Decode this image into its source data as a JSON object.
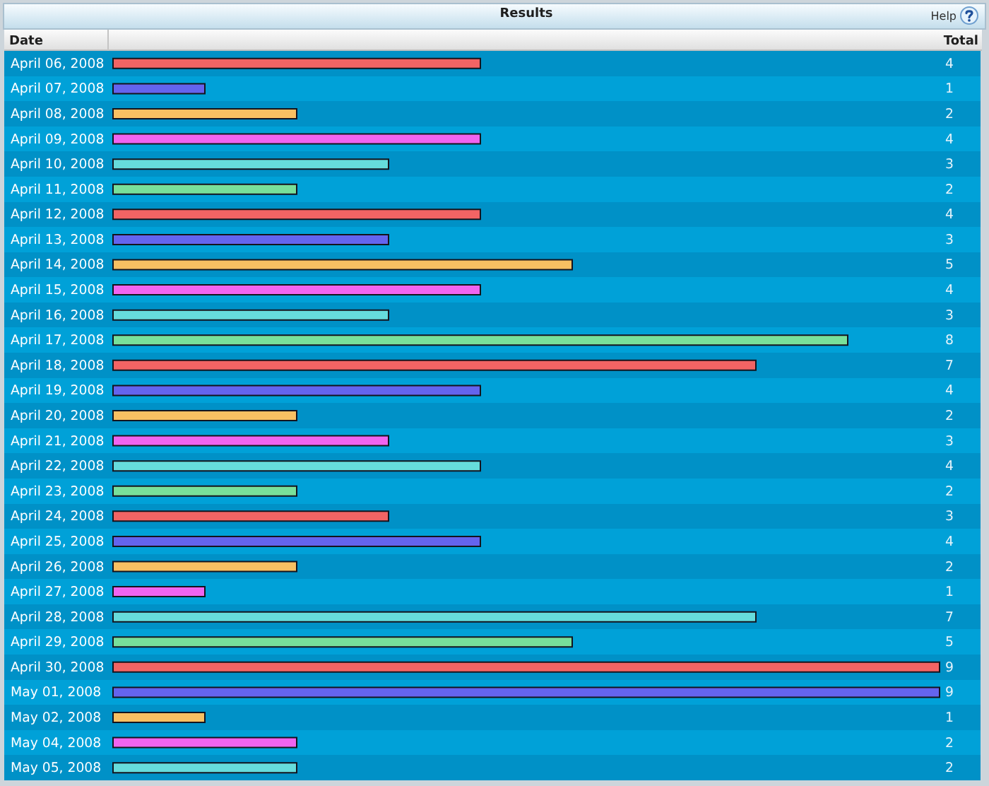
{
  "chart_data": {
    "type": "bar",
    "orientation": "horizontal",
    "title": "Results",
    "xlabel": "Total",
    "ylabel": "Date",
    "annotations": [
      "Help"
    ],
    "categories": [
      "April 06, 2008",
      "April 07, 2008",
      "April 08, 2008",
      "April 09, 2008",
      "April 10, 2008",
      "April 11, 2008",
      "April 12, 2008",
      "April 13, 2008",
      "April 14, 2008",
      "April 15, 2008",
      "April 16, 2008",
      "April 17, 2008",
      "April 18, 2008",
      "April 19, 2008",
      "April 20, 2008",
      "April 21, 2008",
      "April 22, 2008",
      "April 23, 2008",
      "April 24, 2008",
      "April 25, 2008",
      "April 26, 2008",
      "April 27, 2008",
      "April 28, 2008",
      "April 29, 2008",
      "April 30, 2008",
      "May 01, 2008",
      "May 02, 2008",
      "May 04, 2008",
      "May 05, 2008"
    ],
    "values": [
      4,
      1,
      2,
      4,
      3,
      2,
      4,
      3,
      5,
      4,
      3,
      8,
      7,
      4,
      2,
      3,
      4,
      2,
      3,
      4,
      2,
      1,
      7,
      5,
      9,
      9,
      1,
      2,
      2
    ],
    "colors": [
      "#f26464",
      "#6464ee",
      "#f8c062",
      "#f064f0",
      "#66dcdc",
      "#78e09a",
      "#f26464",
      "#6464ee",
      "#f8c062",
      "#f064f0",
      "#66dcdc",
      "#78e09a",
      "#f26464",
      "#6464ee",
      "#f8c062",
      "#f064f0",
      "#66dcdc",
      "#78e09a",
      "#f26464",
      "#6464ee",
      "#f8c062",
      "#f064f0",
      "#66dcdc",
      "#78e09a",
      "#f26464",
      "#6464ee",
      "#f8c062",
      "#f064f0",
      "#66dcdc"
    ],
    "xlim": [
      0,
      9
    ],
    "data_labels": true,
    "tick_labels": "y"
  }
}
